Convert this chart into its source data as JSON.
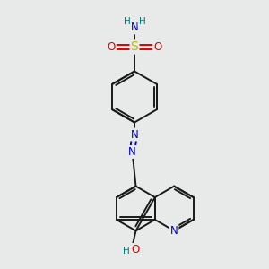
{
  "bg_color": "#e8eaea",
  "bond_color": "#1a1a1a",
  "bond_width": 1.4,
  "atom_colors": {
    "N": "#0000cc",
    "O": "#dd0000",
    "S": "#bbbb00",
    "H": "#007777",
    "C": "#1a1a1a"
  },
  "font_size": 8.5,
  "fig_width": 3.0,
  "fig_height": 3.0,
  "xlim": [
    1.0,
    9.0
  ],
  "ylim": [
    0.5,
    10.5
  ]
}
